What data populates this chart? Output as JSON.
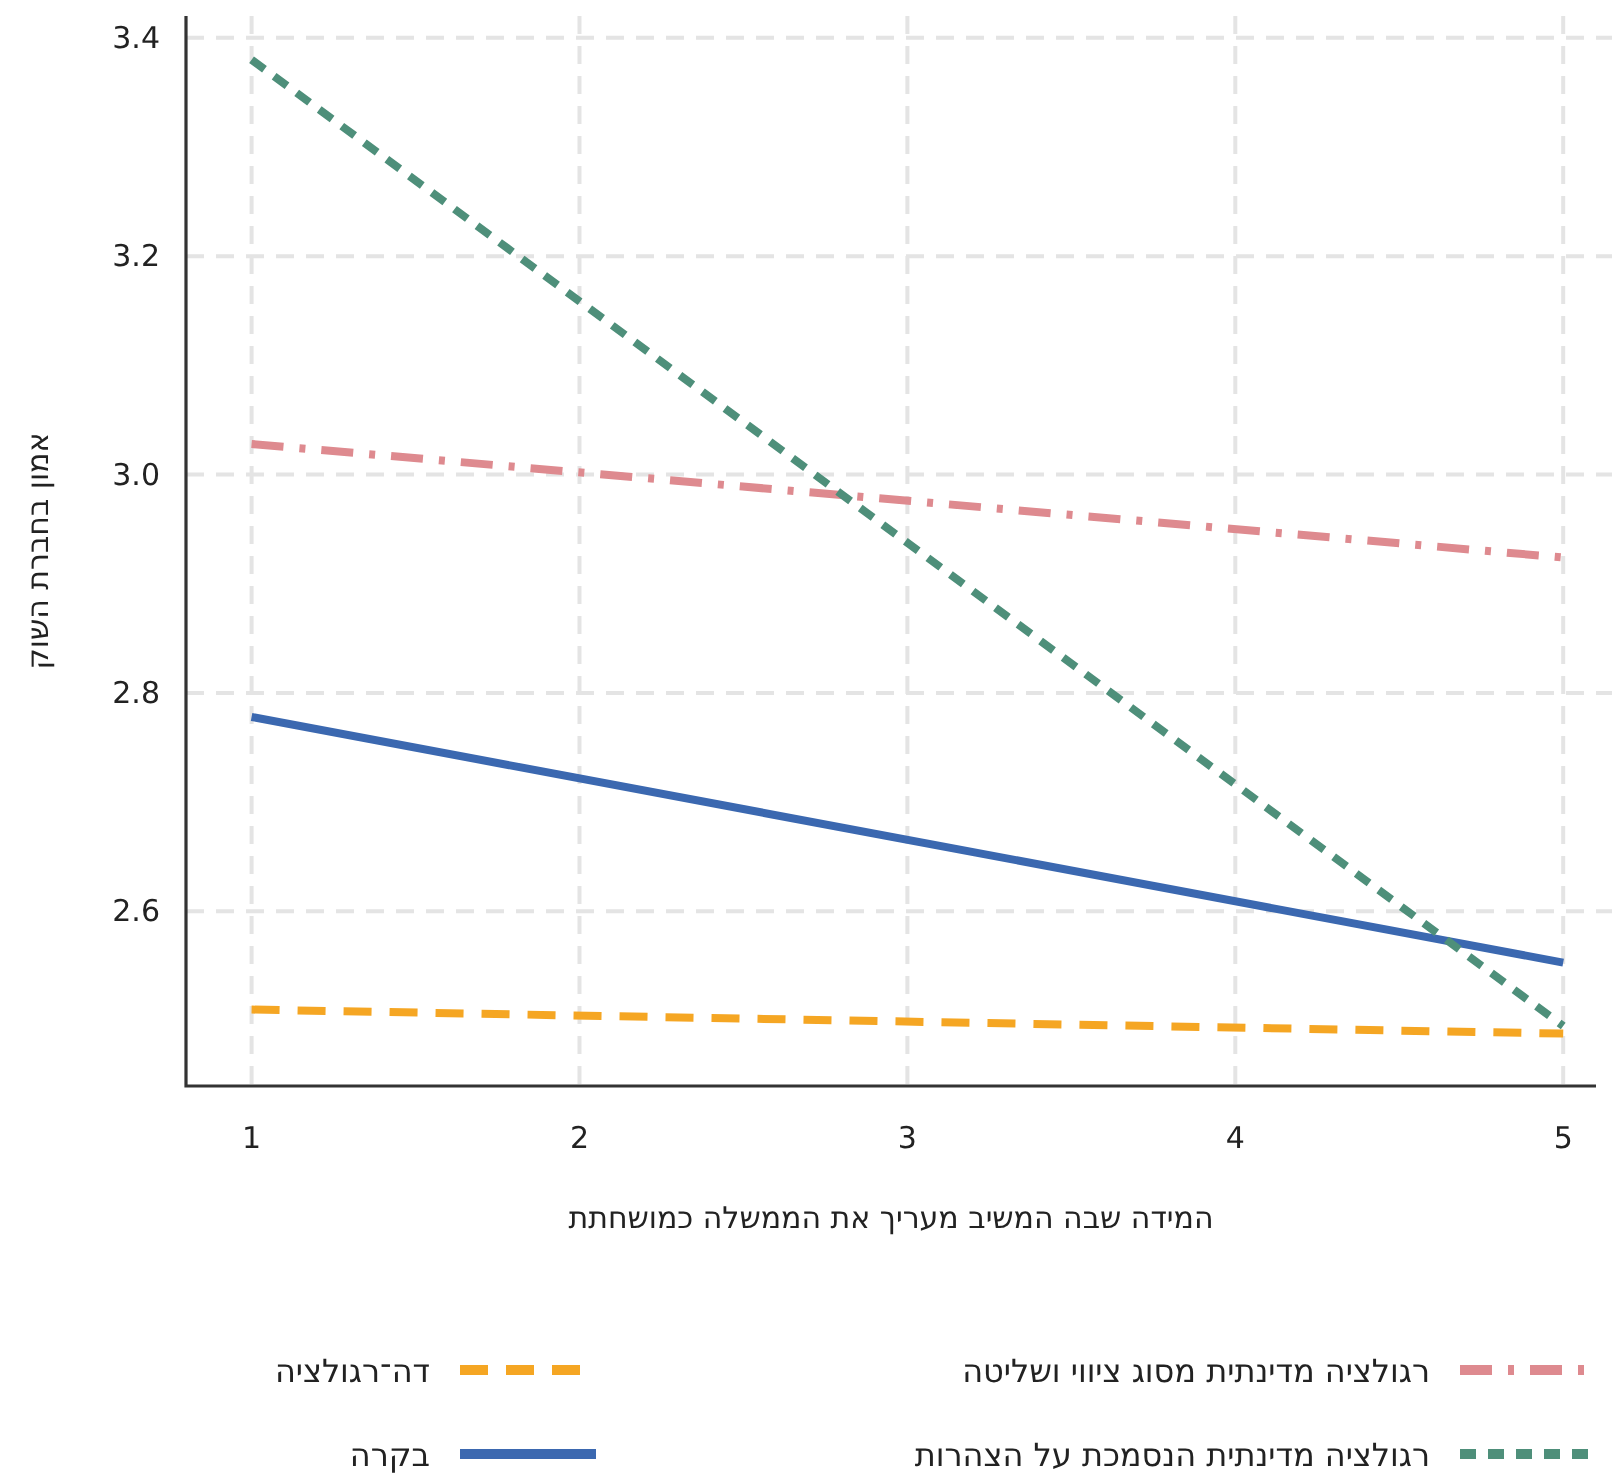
{
  "chart_data": {
    "type": "line",
    "xlabel": "המידה שבה המשיב מעריך את הממשלה כמושחתת",
    "ylabel": "אמון בחברת השוק",
    "x": [
      1,
      5
    ],
    "xlim": [
      0.8,
      5.1
    ],
    "xticks": [
      1,
      2,
      3,
      4,
      5
    ],
    "ylim": [
      2.44,
      3.42
    ],
    "yticks": [
      2.6,
      2.8,
      {
        "value": 3.0,
        "label": "3.0"
      },
      3.2,
      3.4
    ],
    "grid": true,
    "legend": "bottom",
    "series": [
      {
        "name": "דה־רגולציה",
        "color": "#f5a623",
        "line_style": "dashed",
        "values": [
          2.51,
          2.488
        ]
      },
      {
        "name": "רגולציה מדינתית מסוג ציווי ושליטה",
        "color": "#de8a8f",
        "line_style": "dashdot",
        "values": [
          3.028,
          2.924
        ]
      },
      {
        "name": "בקרה",
        "color": "#3b68b0",
        "line_style": "solid",
        "values": [
          2.778,
          2.553
        ]
      },
      {
        "name": "רגולציה מדינתית הנסמכת על הצהרות",
        "color": "#4e8f7a",
        "line_style": "dotted",
        "values": [
          3.38,
          2.495
        ]
      }
    ]
  }
}
